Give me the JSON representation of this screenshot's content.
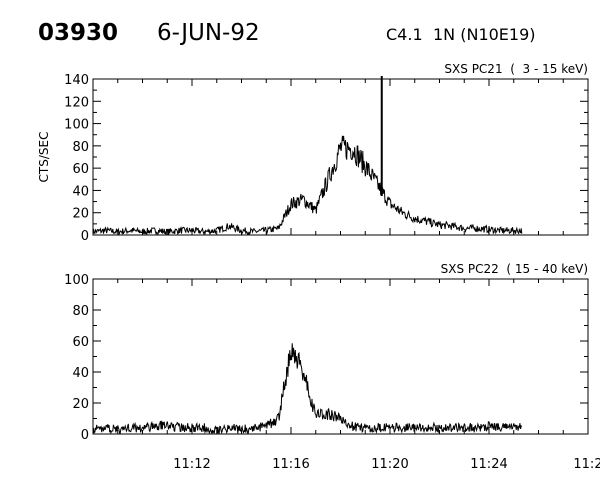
{
  "header": {
    "event_id": "03930",
    "date": "6-JUN-92",
    "goes_class": "C4.1",
    "location": "1N (N10E19)"
  },
  "chart_data": [
    {
      "type": "line",
      "title": "SXS PC21  (  3 - 15 keV)",
      "ylabel": "CTS/SEC",
      "xlabel": "",
      "xlim": [
        "11:08",
        "11:28"
      ],
      "ylim": [
        0,
        140
      ],
      "yticks": [
        "0",
        "20",
        "40",
        "60",
        "80",
        "100",
        "120",
        "140"
      ],
      "grid": false,
      "color": "#000000",
      "annotation_line": "11:19:40",
      "x": [
        "11:08:00",
        "11:08:30",
        "11:09:00",
        "11:09:30",
        "11:10:00",
        "11:10:30",
        "11:11:00",
        "11:11:30",
        "11:12:00",
        "11:12:30",
        "11:13:00",
        "11:13:30",
        "11:14:00",
        "11:14:30",
        "11:15:00",
        "11:15:30",
        "11:16:00",
        "11:16:30",
        "11:17:00",
        "11:17:30",
        "11:18:00",
        "11:18:30",
        "11:19:00",
        "11:19:30",
        "11:20:00",
        "11:20:30",
        "11:21:00",
        "11:21:30",
        "11:22:00",
        "11:22:30",
        "11:23:00",
        "11:23:30",
        "11:24:00",
        "11:24:30",
        "11:25:00",
        "11:25:20"
      ],
      "values": [
        3,
        4,
        3,
        4,
        3,
        4,
        3,
        4,
        4,
        3,
        4,
        8,
        4,
        3,
        4,
        6,
        28,
        32,
        22,
        50,
        78,
        78,
        62,
        45,
        28,
        20,
        15,
        12,
        9,
        8,
        6,
        6,
        5,
        4,
        4,
        4
      ]
    },
    {
      "type": "line",
      "title": "SXS PC22  ( 15 - 40 keV)",
      "ylabel": "",
      "xlabel": "",
      "xlim": [
        "11:08",
        "11:28"
      ],
      "ylim": [
        0,
        100
      ],
      "yticks": [
        "0",
        "20",
        "40",
        "60",
        "80",
        "100"
      ],
      "xticks": [
        "11:12",
        "11:16",
        "11:20",
        "11:24",
        "11:2"
      ],
      "grid": false,
      "color": "#000000",
      "x": [
        "11:08:00",
        "11:08:30",
        "11:09:00",
        "11:09:30",
        "11:10:00",
        "11:10:30",
        "11:11:00",
        "11:11:30",
        "11:12:00",
        "11:12:30",
        "11:13:00",
        "11:13:30",
        "11:14:00",
        "11:14:30",
        "11:15:00",
        "11:15:30",
        "11:16:00",
        "11:16:30",
        "11:17:00",
        "11:17:30",
        "11:18:00",
        "11:18:30",
        "11:19:00",
        "11:19:30",
        "11:20:00",
        "11:20:30",
        "11:21:00",
        "11:21:30",
        "11:22:00",
        "11:22:30",
        "11:23:00",
        "11:23:30",
        "11:24:00",
        "11:24:30",
        "11:25:00",
        "11:25:20"
      ],
      "values": [
        3,
        4,
        3,
        4,
        4,
        5,
        6,
        4,
        4,
        4,
        3,
        4,
        3,
        4,
        5,
        10,
        55,
        40,
        12,
        13,
        10,
        5,
        4,
        4,
        4,
        4,
        4,
        4,
        4,
        4,
        4,
        4,
        5,
        4,
        5,
        5
      ]
    }
  ]
}
